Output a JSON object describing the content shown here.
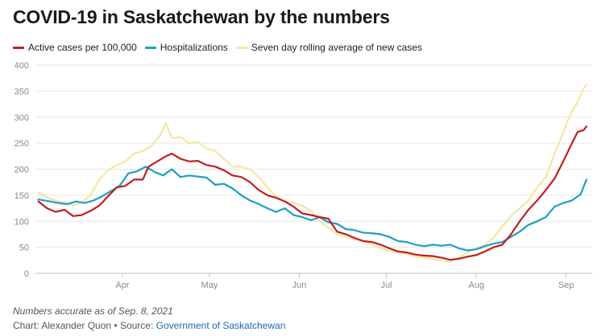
{
  "title": "COVID-19 in Saskatchewan by the numbers",
  "legend": [
    {
      "label": "Active cases per 100,000",
      "color": "#c01f1f"
    },
    {
      "label": "Hospitalizations",
      "color": "#1f9fc4"
    },
    {
      "label": "Seven day rolling average of new cases",
      "color": "#f6e6a0"
    }
  ],
  "notes": {
    "accuracy": "Numbers accurate as of Sep. 8, 2021",
    "credit_prefix": "Chart: Alexander Quon • Source: ",
    "source_link": "Government of Saskatchewan"
  },
  "chart_data": {
    "type": "line",
    "xlim": [
      "2021-03-02",
      "2021-09-10"
    ],
    "ylim": [
      0,
      400
    ],
    "yticks": [
      0,
      50,
      100,
      150,
      200,
      250,
      300,
      350,
      400
    ],
    "xticks": [
      {
        "label": "Apr",
        "date": "2021-04-01"
      },
      {
        "label": "May",
        "date": "2021-05-01"
      },
      {
        "label": "Jun",
        "date": "2021-06-01"
      },
      {
        "label": "Jul",
        "date": "2021-07-01"
      },
      {
        "label": "Aug",
        "date": "2021-08-01"
      },
      {
        "label": "Sep",
        "date": "2021-09-01"
      }
    ],
    "grid": "horizontal",
    "series": [
      {
        "name": "Seven day rolling average of new cases",
        "color": "#f6e6a0",
        "points": [
          [
            "2021-03-03",
            155
          ],
          [
            "2021-03-07",
            143
          ],
          [
            "2021-03-11",
            137
          ],
          [
            "2021-03-15",
            131
          ],
          [
            "2021-03-18",
            136
          ],
          [
            "2021-03-21",
            150
          ],
          [
            "2021-03-24",
            180
          ],
          [
            "2021-03-27",
            198
          ],
          [
            "2021-03-30",
            208
          ],
          [
            "2021-04-02",
            215
          ],
          [
            "2021-04-05",
            230
          ],
          [
            "2021-04-08",
            235
          ],
          [
            "2021-04-11",
            245
          ],
          [
            "2021-04-14",
            265
          ],
          [
            "2021-04-16",
            288
          ],
          [
            "2021-04-18",
            260
          ],
          [
            "2021-04-21",
            262
          ],
          [
            "2021-04-24",
            250
          ],
          [
            "2021-04-27",
            252
          ],
          [
            "2021-04-30",
            240
          ],
          [
            "2021-05-03",
            235
          ],
          [
            "2021-05-06",
            220
          ],
          [
            "2021-05-09",
            205
          ],
          [
            "2021-05-12",
            205
          ],
          [
            "2021-05-15",
            200
          ],
          [
            "2021-05-18",
            185
          ],
          [
            "2021-05-21",
            165
          ],
          [
            "2021-05-24",
            148
          ],
          [
            "2021-05-27",
            138
          ],
          [
            "2021-05-30",
            135
          ],
          [
            "2021-06-02",
            130
          ],
          [
            "2021-06-05",
            120
          ],
          [
            "2021-06-08",
            100
          ],
          [
            "2021-06-11",
            88
          ],
          [
            "2021-06-14",
            75
          ],
          [
            "2021-06-17",
            70
          ],
          [
            "2021-06-20",
            65
          ],
          [
            "2021-06-23",
            62
          ],
          [
            "2021-06-26",
            55
          ],
          [
            "2021-06-29",
            48
          ],
          [
            "2021-07-02",
            43
          ],
          [
            "2021-07-05",
            40
          ],
          [
            "2021-07-08",
            37
          ],
          [
            "2021-07-11",
            32
          ],
          [
            "2021-07-14",
            30
          ],
          [
            "2021-07-17",
            28
          ],
          [
            "2021-07-20",
            25
          ],
          [
            "2021-07-23",
            22
          ],
          [
            "2021-07-26",
            30
          ],
          [
            "2021-07-29",
            40
          ],
          [
            "2021-08-01",
            48
          ],
          [
            "2021-08-04",
            55
          ],
          [
            "2021-08-07",
            68
          ],
          [
            "2021-08-10",
            90
          ],
          [
            "2021-08-13",
            110
          ],
          [
            "2021-08-16",
            125
          ],
          [
            "2021-08-19",
            140
          ],
          [
            "2021-08-22",
            165
          ],
          [
            "2021-08-25",
            185
          ],
          [
            "2021-08-28",
            230
          ],
          [
            "2021-08-31",
            270
          ],
          [
            "2021-09-02",
            300
          ],
          [
            "2021-09-05",
            330
          ],
          [
            "2021-09-07",
            355
          ],
          [
            "2021-09-08",
            362
          ]
        ]
      },
      {
        "name": "Hospitalizations",
        "color": "#1f9fc4",
        "points": [
          [
            "2021-03-03",
            142
          ],
          [
            "2021-03-07",
            138
          ],
          [
            "2021-03-10",
            135
          ],
          [
            "2021-03-13",
            133
          ],
          [
            "2021-03-16",
            138
          ],
          [
            "2021-03-19",
            135
          ],
          [
            "2021-03-22",
            140
          ],
          [
            "2021-03-25",
            148
          ],
          [
            "2021-03-28",
            158
          ],
          [
            "2021-03-31",
            168
          ],
          [
            "2021-04-03",
            192
          ],
          [
            "2021-04-06",
            196
          ],
          [
            "2021-04-09",
            205
          ],
          [
            "2021-04-12",
            195
          ],
          [
            "2021-04-15",
            188
          ],
          [
            "2021-04-18",
            200
          ],
          [
            "2021-04-21",
            185
          ],
          [
            "2021-04-24",
            188
          ],
          [
            "2021-04-27",
            186
          ],
          [
            "2021-04-30",
            184
          ],
          [
            "2021-05-03",
            170
          ],
          [
            "2021-05-06",
            172
          ],
          [
            "2021-05-09",
            163
          ],
          [
            "2021-05-12",
            150
          ],
          [
            "2021-05-15",
            140
          ],
          [
            "2021-05-18",
            133
          ],
          [
            "2021-05-21",
            125
          ],
          [
            "2021-05-24",
            118
          ],
          [
            "2021-05-27",
            125
          ],
          [
            "2021-05-30",
            112
          ],
          [
            "2021-06-02",
            108
          ],
          [
            "2021-06-05",
            102
          ],
          [
            "2021-06-08",
            108
          ],
          [
            "2021-06-11",
            98
          ],
          [
            "2021-06-14",
            95
          ],
          [
            "2021-06-17",
            85
          ],
          [
            "2021-06-20",
            83
          ],
          [
            "2021-06-23",
            78
          ],
          [
            "2021-06-26",
            77
          ],
          [
            "2021-06-29",
            75
          ],
          [
            "2021-07-02",
            70
          ],
          [
            "2021-07-05",
            62
          ],
          [
            "2021-07-08",
            60
          ],
          [
            "2021-07-11",
            55
          ],
          [
            "2021-07-14",
            52
          ],
          [
            "2021-07-17",
            55
          ],
          [
            "2021-07-20",
            53
          ],
          [
            "2021-07-23",
            55
          ],
          [
            "2021-07-26",
            48
          ],
          [
            "2021-07-29",
            44
          ],
          [
            "2021-08-01",
            46
          ],
          [
            "2021-08-04",
            52
          ],
          [
            "2021-08-07",
            57
          ],
          [
            "2021-08-10",
            60
          ],
          [
            "2021-08-13",
            70
          ],
          [
            "2021-08-16",
            80
          ],
          [
            "2021-08-19",
            93
          ],
          [
            "2021-08-22",
            100
          ],
          [
            "2021-08-25",
            108
          ],
          [
            "2021-08-28",
            128
          ],
          [
            "2021-08-31",
            135
          ],
          [
            "2021-09-03",
            140
          ],
          [
            "2021-09-06",
            152
          ],
          [
            "2021-09-08",
            180
          ]
        ]
      },
      {
        "name": "Active cases per 100,000",
        "color": "#c01f1f",
        "points": [
          [
            "2021-03-03",
            138
          ],
          [
            "2021-03-06",
            125
          ],
          [
            "2021-03-09",
            118
          ],
          [
            "2021-03-12",
            122
          ],
          [
            "2021-03-15",
            110
          ],
          [
            "2021-03-18",
            112
          ],
          [
            "2021-03-21",
            120
          ],
          [
            "2021-03-24",
            130
          ],
          [
            "2021-03-27",
            148
          ],
          [
            "2021-03-30",
            165
          ],
          [
            "2021-04-02",
            168
          ],
          [
            "2021-04-05",
            180
          ],
          [
            "2021-04-08",
            180
          ],
          [
            "2021-04-10",
            205
          ],
          [
            "2021-04-13",
            215
          ],
          [
            "2021-04-16",
            225
          ],
          [
            "2021-04-18",
            230
          ],
          [
            "2021-04-21",
            220
          ],
          [
            "2021-04-24",
            215
          ],
          [
            "2021-04-27",
            216
          ],
          [
            "2021-04-30",
            208
          ],
          [
            "2021-05-03",
            205
          ],
          [
            "2021-05-06",
            198
          ],
          [
            "2021-05-09",
            188
          ],
          [
            "2021-05-12",
            185
          ],
          [
            "2021-05-15",
            175
          ],
          [
            "2021-05-18",
            160
          ],
          [
            "2021-05-21",
            150
          ],
          [
            "2021-05-24",
            145
          ],
          [
            "2021-05-27",
            138
          ],
          [
            "2021-05-30",
            128
          ],
          [
            "2021-06-02",
            115
          ],
          [
            "2021-06-05",
            112
          ],
          [
            "2021-06-08",
            108
          ],
          [
            "2021-06-11",
            105
          ],
          [
            "2021-06-14",
            80
          ],
          [
            "2021-06-17",
            75
          ],
          [
            "2021-06-20",
            68
          ],
          [
            "2021-06-23",
            62
          ],
          [
            "2021-06-26",
            60
          ],
          [
            "2021-06-29",
            55
          ],
          [
            "2021-07-02",
            48
          ],
          [
            "2021-07-05",
            42
          ],
          [
            "2021-07-08",
            40
          ],
          [
            "2021-07-11",
            36
          ],
          [
            "2021-07-14",
            34
          ],
          [
            "2021-07-17",
            33
          ],
          [
            "2021-07-20",
            30
          ],
          [
            "2021-07-23",
            26
          ],
          [
            "2021-07-26",
            28
          ],
          [
            "2021-07-29",
            32
          ],
          [
            "2021-08-01",
            35
          ],
          [
            "2021-08-04",
            42
          ],
          [
            "2021-08-07",
            50
          ],
          [
            "2021-08-10",
            55
          ],
          [
            "2021-08-13",
            75
          ],
          [
            "2021-08-16",
            100
          ],
          [
            "2021-08-19",
            122
          ],
          [
            "2021-08-22",
            140
          ],
          [
            "2021-08-25",
            160
          ],
          [
            "2021-08-28",
            182
          ],
          [
            "2021-08-31",
            215
          ],
          [
            "2021-09-03",
            250
          ],
          [
            "2021-09-05",
            272
          ],
          [
            "2021-09-07",
            275
          ],
          [
            "2021-09-08",
            282
          ]
        ]
      }
    ]
  }
}
